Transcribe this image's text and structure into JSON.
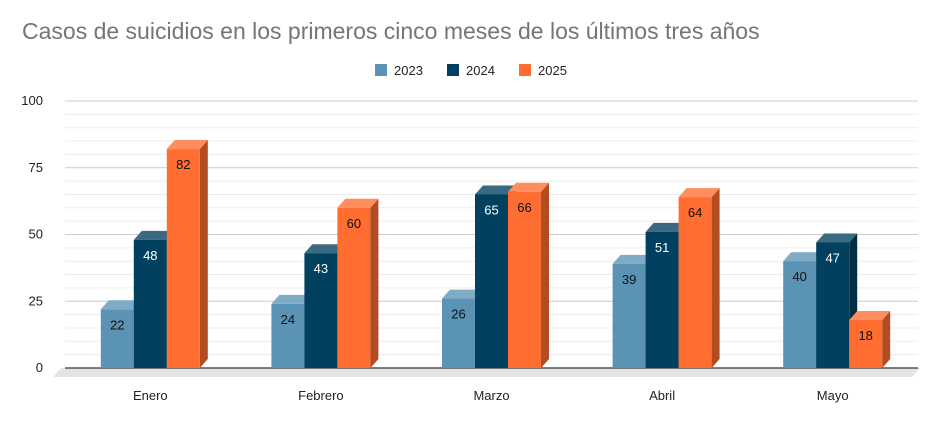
{
  "chart_data": {
    "type": "bar",
    "title": "Casos de suicidios en los primeros cinco meses de los últimos tres años",
    "xlabel": "",
    "ylabel": "",
    "categories": [
      "Enero",
      "Febrero",
      "Marzo",
      "Abril",
      "Mayo"
    ],
    "series": [
      {
        "name": "2023",
        "color": "#5b93b4",
        "values": [
          22,
          24,
          26,
          39,
          40
        ]
      },
      {
        "name": "2024",
        "color": "#02405f",
        "values": [
          48,
          43,
          65,
          51,
          47
        ]
      },
      {
        "name": "2025",
        "color": "#ff6d31",
        "values": [
          82,
          60,
          66,
          64,
          18
        ]
      }
    ],
    "ylim": [
      0,
      100
    ],
    "yticks": [
      "0",
      "25",
      "50",
      "75",
      "100"
    ],
    "grid": true,
    "legend_position": "top-center",
    "style": "3d-column"
  }
}
